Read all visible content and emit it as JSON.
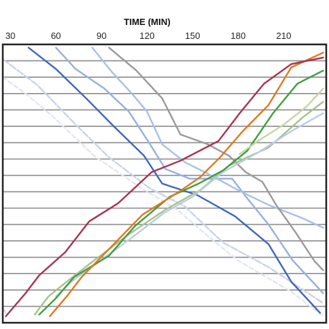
{
  "chart_data": {
    "type": "line",
    "title": "",
    "xlabel": "TIME (MIN)",
    "ylabel": "",
    "x_ticks": [
      30,
      60,
      90,
      120,
      150,
      180,
      210
    ],
    "x_tick_labels": [
      "30",
      "60",
      "90",
      "120",
      "150",
      "180",
      "210"
    ],
    "xlim": [
      25,
      238
    ],
    "ylim": [
      0,
      17
    ],
    "x_axis_position": "top",
    "grid": {
      "horizontal": true,
      "vertical": false
    },
    "legend": "none",
    "series": [
      {
        "color": "#e2e6f2",
        "dash": "6,4",
        "points": [
          [
            25,
            15
          ],
          [
            40,
            14
          ],
          [
            58,
            12.6
          ],
          [
            85,
            10.2
          ],
          [
            115,
            8.3
          ],
          [
            140,
            6.9
          ],
          [
            160,
            5.3
          ],
          [
            180,
            3.8
          ],
          [
            215,
            1.9
          ],
          [
            236,
            0.4
          ]
        ]
      },
      {
        "color": "#c9d3e8",
        "dash": "10,3",
        "points": [
          [
            25,
            16.1
          ],
          [
            48,
            14.5
          ],
          [
            72,
            12.2
          ],
          [
            95,
            10.1
          ],
          [
            122,
            8.2
          ],
          [
            145,
            7.1
          ],
          [
            170,
            4.9
          ],
          [
            200,
            3.4
          ],
          [
            236,
            1.2
          ]
        ]
      },
      {
        "color": "#3f67b8",
        "dash": "",
        "points": [
          [
            42,
            16.8
          ],
          [
            60,
            15.5
          ],
          [
            80,
            13.7
          ],
          [
            97,
            12.1
          ],
          [
            118,
            10.2
          ],
          [
            130,
            8.5
          ],
          [
            153,
            7.8
          ],
          [
            178,
            6.5
          ],
          [
            200,
            4.8
          ],
          [
            215,
            2.5
          ],
          [
            234,
            0.6
          ]
        ]
      },
      {
        "color": "#96b0dd",
        "dash": "",
        "points": [
          [
            60,
            16.8
          ],
          [
            73,
            15.5
          ],
          [
            92,
            14.3
          ],
          [
            108,
            12.9
          ],
          [
            122,
            10.9
          ],
          [
            132,
            9.4
          ],
          [
            148,
            8.8
          ],
          [
            176,
            8.8
          ],
          [
            186,
            7.6
          ],
          [
            200,
            6
          ],
          [
            216,
            3.8
          ],
          [
            236,
            1.8
          ]
        ]
      },
      {
        "color": "#a9bfe6",
        "dash": "",
        "points": [
          [
            84,
            16.8
          ],
          [
            97,
            15.3
          ],
          [
            110,
            14
          ],
          [
            120,
            12.9
          ],
          [
            130,
            10.9
          ],
          [
            145,
            9.8
          ],
          [
            160,
            9.1
          ],
          [
            182,
            8
          ],
          [
            200,
            7.2
          ],
          [
            222,
            6.4
          ],
          [
            236,
            5.8
          ]
        ]
      },
      {
        "color": "#9a9a9a",
        "dash": "",
        "points": [
          [
            95,
            16.8
          ],
          [
            113,
            15.4
          ],
          [
            130,
            13.7
          ],
          [
            142,
            11.5
          ],
          [
            160,
            10.9
          ],
          [
            174,
            10.2
          ],
          [
            185,
            9.2
          ],
          [
            196,
            8.6
          ],
          [
            205,
            7.2
          ],
          [
            218,
            5.5
          ],
          [
            230,
            3.8
          ],
          [
            236,
            3.2
          ]
        ]
      },
      {
        "color": "#a8c08a",
        "dash": "",
        "points": [
          [
            46,
            0.5
          ],
          [
            55,
            1.6
          ],
          [
            67,
            2.5
          ],
          [
            85,
            3.8
          ],
          [
            108,
            5.4
          ],
          [
            132,
            6.9
          ],
          [
            155,
            8.1
          ],
          [
            174,
            9.6
          ],
          [
            200,
            10.7
          ],
          [
            222,
            12.5
          ],
          [
            236,
            13.5
          ]
        ]
      },
      {
        "color": "#b8cce6",
        "dash": "",
        "points": [
          [
            60,
            1.6
          ],
          [
            70,
            2.5
          ],
          [
            88,
            3.7
          ],
          [
            110,
            5.2
          ],
          [
            131,
            6.7
          ],
          [
            150,
            7.7
          ],
          [
            170,
            9.2
          ],
          [
            195,
            10.5
          ],
          [
            215,
            11.7
          ],
          [
            236,
            12.8
          ]
        ]
      },
      {
        "color": "#3e9e3e",
        "dash": "",
        "points": [
          [
            49,
            0.5
          ],
          [
            60,
            1.5
          ],
          [
            72,
            2.8
          ],
          [
            95,
            4.1
          ],
          [
            112,
            5.9
          ],
          [
            135,
            7.7
          ],
          [
            154,
            8.5
          ],
          [
            170,
            9.3
          ],
          [
            186,
            10.5
          ],
          [
            203,
            12.8
          ],
          [
            219,
            14.6
          ],
          [
            236,
            15.4
          ]
        ]
      },
      {
        "color": "#e2771f",
        "dash": "",
        "points": [
          [
            56,
            0.4
          ],
          [
            67,
            1.6
          ],
          [
            77,
            2.8
          ],
          [
            96,
            4.6
          ],
          [
            117,
            6.6
          ],
          [
            141,
            8
          ],
          [
            155,
            8.9
          ],
          [
            168,
            10.1
          ],
          [
            183,
            11.7
          ],
          [
            200,
            13.3
          ],
          [
            215,
            15.6
          ],
          [
            236,
            16.5
          ]
        ]
      },
      {
        "color": "#a8334f",
        "dash": "",
        "points": [
          [
            27,
            0.4
          ],
          [
            40,
            1.8
          ],
          [
            49,
            2.9
          ],
          [
            66,
            4.3
          ],
          [
            82,
            6.2
          ],
          [
            101,
            7.3
          ],
          [
            123,
            9.2
          ],
          [
            142,
            9.9
          ],
          [
            167,
            11.1
          ],
          [
            181,
            12.8
          ],
          [
            197,
            14.6
          ],
          [
            215,
            15.8
          ],
          [
            236,
            16.2
          ]
        ]
      },
      {
        "color": "#c5d6a4",
        "dash": "",
        "points": [
          [
            181,
            10.3
          ],
          [
            193,
            11.1
          ],
          [
            210,
            12.1
          ],
          [
            225,
            13.2
          ],
          [
            236,
            14.3
          ]
        ]
      },
      {
        "color": "#d2dcef",
        "dash": "",
        "points": [
          [
            25,
            0.9
          ],
          [
            27,
            0.6
          ]
        ]
      }
    ]
  }
}
